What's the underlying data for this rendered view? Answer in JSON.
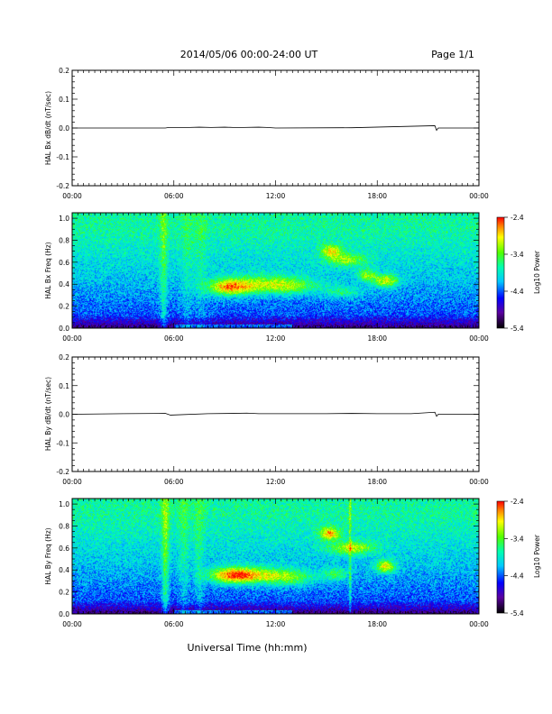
{
  "header": {
    "title": "2014/05/06  00:00-24:00 UT",
    "page": "Page 1/1"
  },
  "footer": {
    "xlabel": "Universal Time (hh:mm)"
  },
  "colorbar": {
    "label": "Log10 Power",
    "ticks": [
      "-2.4",
      "-3.4",
      "-4.4",
      "-5.4"
    ]
  },
  "chart_data": [
    {
      "type": "line",
      "ylabel": "HAL Bx dB/dt (nT/sec)",
      "xlabel": "",
      "x_ticks": [
        "00:00",
        "06:00",
        "12:00",
        "18:00",
        "00:00"
      ],
      "y_ticks": [
        "0.2",
        "0.1",
        "0.0",
        "-0.1",
        "-0.2"
      ],
      "xlim_hours": [
        0,
        24
      ],
      "ylim": [
        -0.2,
        0.2
      ],
      "series": [
        {
          "x": [
            0,
            5.5,
            5.7,
            6.9,
            7.5,
            8.2,
            9.0,
            9.5,
            10.1,
            11.0,
            11.5,
            12.0,
            16.5,
            21.4,
            21.5,
            21.6,
            24
          ],
          "y": [
            0,
            0,
            0.002,
            0.002,
            0.003,
            0.002,
            0.003,
            0.002,
            0.002,
            0.003,
            0.002,
            0,
            0.001,
            0.008,
            -0.008,
            0,
            0
          ]
        }
      ]
    },
    {
      "type": "heatmap",
      "ylabel": "HAL Bx Freq (Hz)",
      "xlabel": "",
      "x_ticks": [
        "00:00",
        "06:00",
        "12:00",
        "18:00",
        "00:00"
      ],
      "y_ticks": [
        "1.0",
        "0.8",
        "0.6",
        "0.4",
        "0.2",
        "0.0"
      ],
      "xlim_hours": [
        0,
        24
      ],
      "ylim": [
        0,
        1.05
      ],
      "features": [
        {
          "kind": "blob",
          "t": 9.3,
          "f": 0.37,
          "dt": 0.9,
          "df": 0.05,
          "v": 1.5
        },
        {
          "kind": "blob",
          "t": 11.2,
          "f": 0.4,
          "dt": 1.6,
          "df": 0.06,
          "v": 0.9
        },
        {
          "kind": "blob",
          "t": 13.0,
          "f": 0.38,
          "dt": 1.2,
          "df": 0.05,
          "v": 0.7
        },
        {
          "kind": "blob",
          "t": 15.3,
          "f": 0.7,
          "dt": 0.4,
          "df": 0.04,
          "v": 1.2
        },
        {
          "kind": "blob",
          "t": 16.2,
          "f": 0.62,
          "dt": 0.8,
          "df": 0.04,
          "v": 0.9
        },
        {
          "kind": "blob",
          "t": 17.4,
          "f": 0.48,
          "dt": 0.4,
          "df": 0.04,
          "v": 0.9
        },
        {
          "kind": "blob",
          "t": 18.5,
          "f": 0.43,
          "dt": 0.5,
          "df": 0.04,
          "v": 1.3
        },
        {
          "kind": "blob",
          "t": 16.0,
          "f": 0.33,
          "dt": 0.8,
          "df": 0.04,
          "v": 0.6
        },
        {
          "kind": "band",
          "t": 5.4,
          "dt": 0.15,
          "v": 0.7
        },
        {
          "kind": "band",
          "t": 6.8,
          "dt": 0.25,
          "v": 0.3
        },
        {
          "kind": "band",
          "t": 7.6,
          "dt": 0.25,
          "v": 0.3
        }
      ]
    },
    {
      "type": "line",
      "ylabel": "HAL By dB/dt (nT/sec)",
      "xlabel": "",
      "x_ticks": [
        "00:00",
        "06:00",
        "12:00",
        "18:00",
        "00:00"
      ],
      "y_ticks": [
        "0.2",
        "0.1",
        "0.0",
        "-0.1",
        "-0.2"
      ],
      "xlim_hours": [
        0,
        24
      ],
      "ylim": [
        -0.2,
        0.2
      ],
      "series": [
        {
          "x": [
            0,
            3.0,
            5.5,
            5.8,
            8.0,
            9.5,
            10.3,
            11.0,
            13.0,
            15.0,
            16.5,
            18.0,
            20.0,
            21.4,
            21.5,
            21.6,
            24
          ],
          "y": [
            0,
            0.002,
            0.003,
            -0.003,
            0.002,
            0.003,
            0.004,
            0.002,
            0.002,
            0.002,
            0.003,
            0.002,
            0.002,
            0.007,
            -0.007,
            0,
            0
          ]
        }
      ]
    },
    {
      "type": "heatmap",
      "ylabel": "HAL By Freq (Hz)",
      "xlabel": "",
      "x_ticks": [
        "00:00",
        "06:00",
        "12:00",
        "18:00",
        "00:00"
      ],
      "y_ticks": [
        "1.0",
        "0.8",
        "0.6",
        "0.4",
        "0.2",
        "0.0"
      ],
      "xlim_hours": [
        0,
        24
      ],
      "ylim": [
        0,
        1.05
      ],
      "features": [
        {
          "kind": "blob",
          "t": 9.5,
          "f": 0.35,
          "dt": 1.0,
          "df": 0.05,
          "v": 1.7
        },
        {
          "kind": "blob",
          "t": 11.3,
          "f": 0.35,
          "dt": 1.4,
          "df": 0.05,
          "v": 1.0
        },
        {
          "kind": "blob",
          "t": 13.0,
          "f": 0.32,
          "dt": 1.0,
          "df": 0.05,
          "v": 0.7
        },
        {
          "kind": "blob",
          "t": 15.2,
          "f": 0.73,
          "dt": 0.4,
          "df": 0.04,
          "v": 1.4
        },
        {
          "kind": "blob",
          "t": 16.5,
          "f": 0.6,
          "dt": 0.9,
          "df": 0.04,
          "v": 1.1
        },
        {
          "kind": "blob",
          "t": 15.5,
          "f": 0.36,
          "dt": 0.5,
          "df": 0.04,
          "v": 0.8
        },
        {
          "kind": "blob",
          "t": 18.5,
          "f": 0.43,
          "dt": 0.4,
          "df": 0.04,
          "v": 1.4
        },
        {
          "kind": "band",
          "t": 5.5,
          "dt": 0.15,
          "v": 0.9
        },
        {
          "kind": "band",
          "t": 6.6,
          "dt": 0.2,
          "v": 0.4
        },
        {
          "kind": "band",
          "t": 7.5,
          "dt": 0.2,
          "v": 0.4
        },
        {
          "kind": "band",
          "t": 16.4,
          "dt": 0.05,
          "v": 0.8
        }
      ]
    }
  ]
}
